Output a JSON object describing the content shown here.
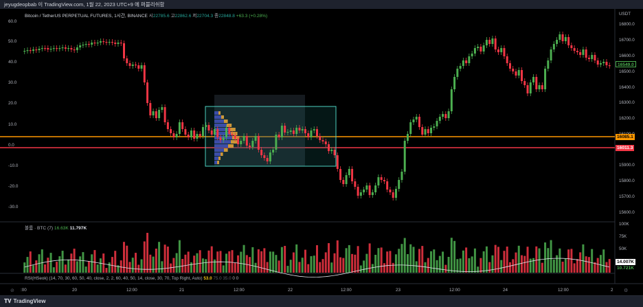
{
  "header": {
    "caption": "jeyugdeopbab 이 TradingView.com, 1월 22, 2023 UTC+9 에 퍼블리쉬함"
  },
  "legend": {
    "symbol": "Bitcoin / TetherUS PERPETUAL FUTURES, 1시간, BINANCE",
    "open_label": "시",
    "open": "22785.6",
    "high_label": "고",
    "high": "22862.6",
    "low_label": "저",
    "low": "22704.3",
    "close_label": "종",
    "close": "22848.8",
    "change": "+63.3 (+0.28%)"
  },
  "volume_legend": {
    "name": "볼륨 · BTC (7)",
    "value1": "16.63K",
    "value2": "11.797K"
  },
  "rsi_legend": {
    "text": "RSI(HSeok) (14, 70, 30, 60, 50, 40, close, 2, 2, 60, 40, 50, 14, close, 30, 70, Top Right, Auto)",
    "value": "53.0",
    "v2": "75.0",
    "v3": "35.0",
    "v4": "0",
    "v5": "0"
  },
  "price_axis": {
    "currency": "USDT",
    "ticks": [
      "16800.0",
      "16700.0",
      "16600.0",
      "16500.0",
      "16400.0",
      "16300.0",
      "16200.0",
      "16100.0",
      "15900.0",
      "15800.0",
      "15700.0",
      "15600.0"
    ],
    "last_price": "16549.0",
    "orange_line": "16085.1",
    "red_line": "16011.3",
    "volume_ticks": [
      "100K",
      "75K",
      "50K"
    ],
    "volume_last": "14.007K",
    "volume_ma": "10.721K"
  },
  "left_axis": {
    "ticks": [
      "60.0",
      "50.0",
      "40.0",
      "30.0",
      "20.0",
      "10.0",
      "0.0",
      "-10.0",
      "-20.0",
      "-30.0"
    ]
  },
  "time_axis": {
    "labels": [
      ":00",
      "20",
      "12:00",
      "21",
      "12:00",
      "22",
      "12:00",
      "23",
      "12:00",
      "24",
      "12:00",
      "2"
    ]
  },
  "colors": {
    "bull": "#4caf50",
    "bear": "#f23645",
    "orange": "#ff9800",
    "red_line": "#f23645",
    "box": "#4dd0c0",
    "background": "#000000"
  },
  "footer": {
    "brand": "TradingView",
    "logo_icon": "tradingview-logo-icon"
  },
  "icons": {
    "time_axis_left": "zoom-icon",
    "time_axis_right": "settings-icon"
  }
}
